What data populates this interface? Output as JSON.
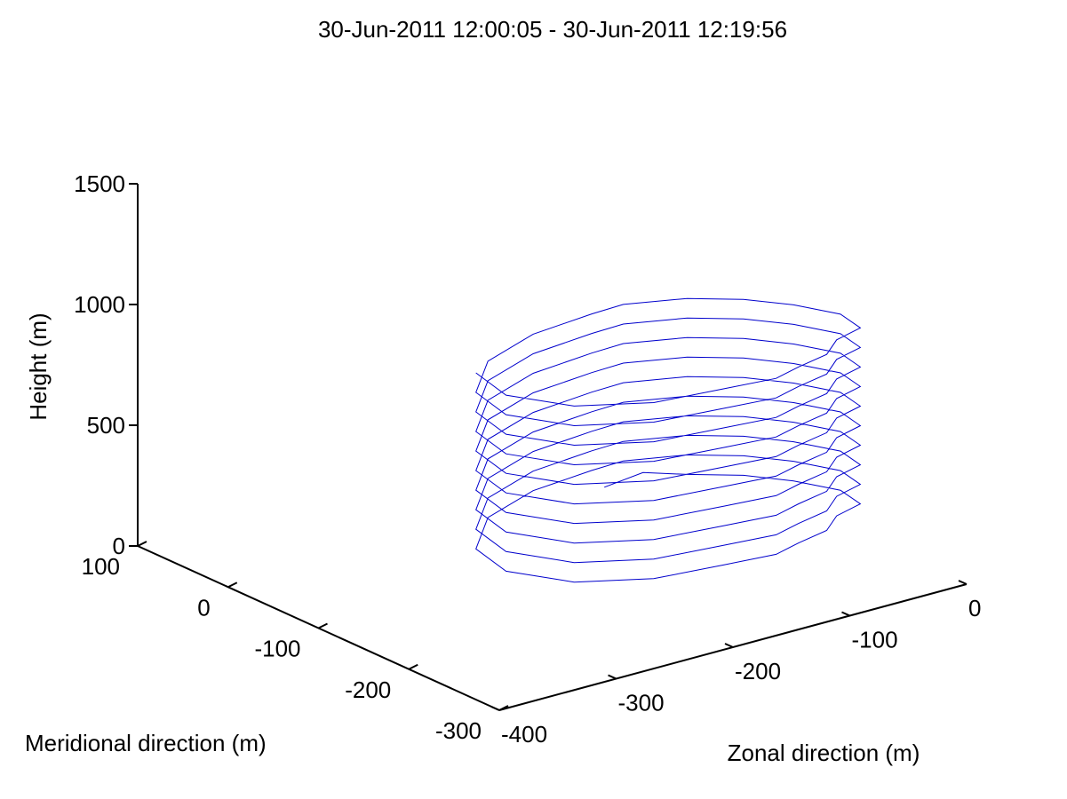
{
  "chart_data": {
    "type": "line",
    "projection": "3d",
    "title": "30-Jun-2011 12:00:05 - 30-Jun-2011 12:19:56",
    "xlabel": "Zonal direction (m)",
    "ylabel": "Meridional direction (m)",
    "zlabel": "Height (m)",
    "xlim": [
      -400,
      0
    ],
    "ylim": [
      -300,
      100
    ],
    "zlim": [
      0,
      1500
    ],
    "xticks": [
      "-400",
      "-300",
      "-200",
      "-100",
      "0"
    ],
    "yticks": [
      "100",
      "0",
      "-100",
      "-200",
      "-300"
    ],
    "zticks": [
      "0",
      "500",
      "1000",
      "1500"
    ],
    "grid": false,
    "series": [
      {
        "color": "#0000cc",
        "description": "approximate helical flight path spiralling upward",
        "x": [
          -177,
          -140,
          -120,
          -92,
          -73,
          -60,
          -67,
          -95,
          -119,
          -150,
          -177,
          -218,
          -274,
          -322,
          -347,
          -338,
          -296,
          -241,
          -187,
          -160,
          -120,
          -92,
          -73,
          -60,
          -67,
          -95,
          -119,
          -150,
          -177,
          -218,
          -274,
          -322,
          -347,
          -338,
          -296,
          -241,
          -187,
          -160,
          -120,
          -92,
          -73,
          -60,
          -67,
          -95,
          -119,
          -150,
          -177,
          -218,
          -274,
          -322,
          -347,
          -338,
          -296,
          -241,
          -187,
          -160,
          -120,
          -92,
          -73,
          -60,
          -67,
          -95,
          -119,
          -150,
          -177,
          -218,
          -274,
          -322,
          -347,
          -338,
          -296,
          -241,
          -187,
          -160,
          -120,
          -92,
          -73,
          -60,
          -67,
          -95,
          -119,
          -150,
          -177,
          -218,
          -274,
          -322,
          -347,
          -338,
          -296,
          -241,
          -187,
          -160,
          -120,
          -92,
          -73,
          -60,
          -67,
          -95,
          -119,
          -150,
          -177,
          -218,
          -274,
          -322,
          -347,
          -338,
          -296,
          -241,
          -187,
          -160,
          -120,
          -92,
          -73,
          -60,
          -67,
          -95,
          -119,
          -150,
          -177,
          -218,
          -274,
          -322,
          -347,
          -338,
          -296,
          -241,
          -187,
          -160,
          -120,
          -92,
          -73,
          -60,
          -67,
          -95,
          -119,
          -150,
          -177,
          -218,
          -274,
          -322,
          -347,
          -338,
          -296,
          -241,
          -187,
          -160,
          -120,
          -92,
          -73,
          -60,
          -67,
          -95,
          -119,
          -150,
          -177,
          -218,
          -274,
          -322,
          -347,
          -338,
          -296,
          -241,
          -187,
          -160,
          -120,
          -92,
          -73,
          -60,
          -67,
          -95,
          -119,
          -150,
          -177,
          -218,
          -274,
          -322,
          -347,
          -338,
          -296,
          -241,
          -187,
          -160
        ],
        "y": [
          -128,
          -123,
          -146,
          -172,
          -203,
          -238,
          -269,
          -279,
          -299,
          -308,
          -318,
          -314,
          -308,
          -282,
          -239,
          -194,
          -153,
          -132,
          -127,
          -127,
          -146,
          -172,
          -203,
          -238,
          -269,
          -279,
          -299,
          -308,
          -318,
          -314,
          -308,
          -282,
          -239,
          -194,
          -153,
          -132,
          -127,
          -127,
          -146,
          -172,
          -203,
          -238,
          -269,
          -279,
          -299,
          -308,
          -318,
          -314,
          -308,
          -282,
          -239,
          -194,
          -153,
          -132,
          -127,
          -127,
          -146,
          -172,
          -203,
          -238,
          -269,
          -279,
          -299,
          -308,
          -318,
          -314,
          -308,
          -282,
          -239,
          -194,
          -153,
          -132,
          -127,
          -127,
          -146,
          -172,
          -203,
          -238,
          -269,
          -279,
          -299,
          -308,
          -318,
          -314,
          -308,
          -282,
          -239,
          -194,
          -153,
          -132,
          -127,
          -127,
          -146,
          -172,
          -203,
          -238,
          -269,
          -279,
          -299,
          -308,
          -318,
          -314,
          -308,
          -282,
          -239,
          -194,
          -153,
          -132,
          -127,
          -127,
          -146,
          -172,
          -203,
          -238,
          -269,
          -279,
          -299,
          -308,
          -318,
          -314,
          -308,
          -282,
          -239,
          -194,
          -153,
          -132,
          -127,
          -127,
          -146,
          -172,
          -203,
          -238,
          -269,
          -279,
          -299,
          -308,
          -318,
          -314,
          -308,
          -282,
          -239,
          -194,
          -153,
          -132,
          -127,
          -127,
          -146,
          -172,
          -203,
          -238,
          -269,
          -279,
          -299,
          -308,
          -318,
          -314,
          -308,
          -282,
          -239,
          -194,
          -153,
          -132,
          -127,
          -127,
          -146,
          -172,
          -203,
          -238,
          -269,
          -279,
          -299,
          -308,
          -318,
          -314,
          -308,
          -282,
          -239,
          -194,
          -153,
          -132,
          -127,
          -127
        ],
        "z": [
          340,
          344,
          349,
          353,
          358,
          362,
          367,
          371,
          376,
          380,
          385,
          389,
          394,
          398,
          403,
          407,
          412,
          416,
          421,
          425,
          430,
          434,
          439,
          443,
          448,
          452,
          457,
          461,
          466,
          470,
          475,
          479,
          484,
          488,
          493,
          497,
          502,
          506,
          511,
          515,
          520,
          524,
          529,
          533,
          538,
          542,
          547,
          551,
          556,
          560,
          565,
          569,
          574,
          578,
          583,
          587,
          592,
          596,
          601,
          605,
          610,
          614,
          619,
          623,
          628,
          632,
          637,
          641,
          646,
          650,
          655,
          659,
          664,
          668,
          673,
          677,
          682,
          686,
          691,
          695,
          700,
          704,
          709,
          713,
          718,
          722,
          727,
          731,
          736,
          740,
          745,
          749,
          754,
          758,
          763,
          767,
          772,
          776,
          781,
          785,
          790,
          794,
          799,
          803,
          808,
          812,
          817,
          821,
          826,
          830,
          835,
          839,
          844,
          848,
          853,
          857,
          862,
          866,
          871,
          875,
          880,
          884,
          889,
          893,
          898,
          902,
          907,
          911,
          916,
          920,
          925,
          929,
          934,
          938,
          943,
          947,
          952,
          956,
          961,
          965,
          970,
          974,
          979,
          983,
          988,
          992,
          997,
          1001,
          1006,
          1010,
          1015,
          1019,
          1024,
          1028,
          1033,
          1037,
          1042,
          1046,
          1051,
          1055,
          1060,
          1064,
          1069,
          1073,
          1078,
          1082,
          1087,
          1091,
          1096,
          1100,
          1105,
          1109,
          1114,
          1118,
          1123,
          1127,
          1132,
          1136
        ]
      }
    ]
  }
}
